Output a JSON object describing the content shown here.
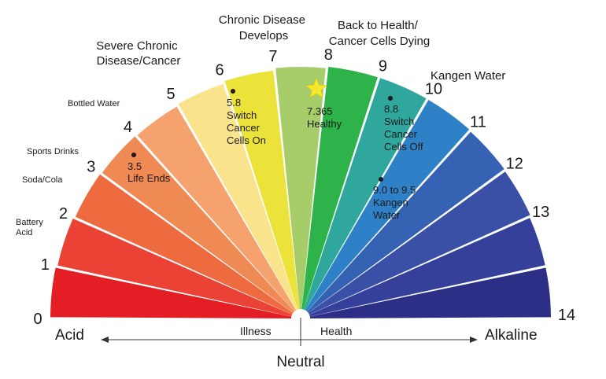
{
  "scale": {
    "numbers": [
      "0",
      "1",
      "2",
      "3",
      "4",
      "5",
      "6",
      "7",
      "8",
      "9",
      "10",
      "11",
      "12",
      "13",
      "14"
    ],
    "colors": [
      "#e31e24",
      "#ea4335",
      "#ee6a3f",
      "#f08a55",
      "#f5a26e",
      "#f9e48c",
      "#ebe23a",
      "#a6cd6a",
      "#2eb24a",
      "#2fa79c",
      "#2f81c7",
      "#3562b3",
      "#3a4fa6",
      "#34409a",
      "#2d2e86"
    ]
  },
  "labels": {
    "acid": "Acid",
    "alkaline": "Alkaline",
    "neutral": "Neutral",
    "illness": "Illness",
    "health": "Health",
    "severe_chronic": [
      "Severe Chronic",
      "Disease/Cancer"
    ],
    "chronic_develops": [
      "Chronic Disease",
      "Develops"
    ],
    "back_to_health": [
      "Back to Health/",
      "Cancer Cells Dying"
    ],
    "kangen_water": "Kangen Water",
    "bottled_water": "Bottled Water",
    "sports_drinks": "Sports Drinks",
    "soda_cola": "Soda/Cola",
    "battery_acid": [
      "Battery",
      "Acid"
    ]
  },
  "annotations": {
    "life_ends": [
      "3.5",
      "Life Ends"
    ],
    "switch_on": [
      "5.8",
      "Switch",
      "Cancer",
      "Cells On"
    ],
    "healthy": [
      "7.365",
      "Healthy"
    ],
    "switch_off": [
      "8.8",
      "Switch",
      "Cancer",
      "Cells Off"
    ],
    "kangen_range": [
      "9.0 to 9.5",
      "Kangen",
      "Water"
    ]
  },
  "star_color": "#f7e62a"
}
